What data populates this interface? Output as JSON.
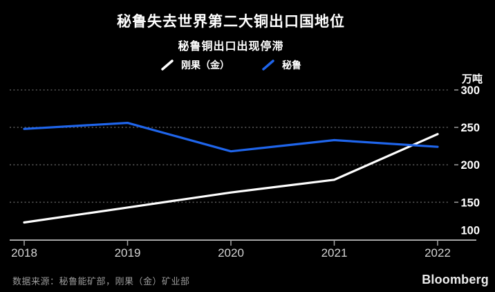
{
  "header": {
    "title": "秘鲁失去世界第二大铜出口国地位",
    "subtitle": "秘鲁铜出口出现停滞"
  },
  "legend": {
    "items": [
      {
        "label": "刚果（金）",
        "color": "#ffffff"
      },
      {
        "label": "秘鲁",
        "color": "#1f65eb"
      }
    ]
  },
  "axis": {
    "unit_label": "万吨"
  },
  "chart_data": {
    "type": "line",
    "x": [
      2018,
      2019,
      2020,
      2021,
      2022
    ],
    "series": [
      {
        "name": "刚果（金）",
        "color": "#ffffff",
        "values": [
          123,
          143,
          163,
          180,
          241
        ]
      },
      {
        "name": "秘鲁",
        "color": "#1f65eb",
        "values": [
          248,
          256,
          218,
          233,
          224
        ]
      }
    ],
    "title": "秘鲁失去世界第二大铜出口国地位",
    "subtitle": "秘鲁铜出口出现停滞",
    "xlabel": "",
    "ylabel": "万吨",
    "ylim": [
      100,
      300
    ],
    "yticks": [
      100,
      150,
      200,
      250,
      300
    ],
    "grid": "dotted-horizontal",
    "legend_position": "top"
  },
  "footer": {
    "source": "数据来源：秘鲁能矿部，刚果（金）矿业部",
    "brand": "Bloomberg"
  },
  "colors": {
    "background": "#000000",
    "axis_line": "#a6a6a6",
    "grid_line": "#585858",
    "right_tick": "#999999",
    "xtick_label": "#d4d4d4",
    "ytick_label": "#ffffff",
    "source_text": "#9b9b9b",
    "brand_text": "#ededed"
  }
}
